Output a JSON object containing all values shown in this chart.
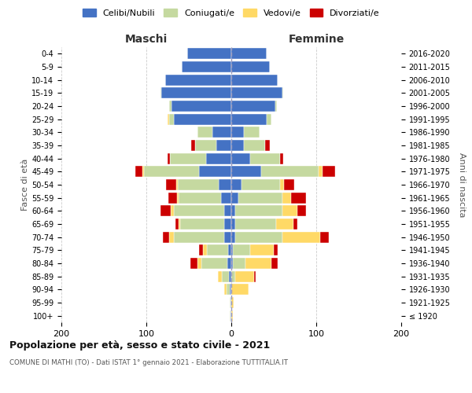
{
  "age_groups": [
    "100+",
    "95-99",
    "90-94",
    "85-89",
    "80-84",
    "75-79",
    "70-74",
    "65-69",
    "60-64",
    "55-59",
    "50-54",
    "45-49",
    "40-44",
    "35-39",
    "30-34",
    "25-29",
    "20-24",
    "15-19",
    "10-14",
    "5-9",
    "0-4"
  ],
  "birth_years": [
    "≤ 1920",
    "1921-1925",
    "1926-1930",
    "1931-1935",
    "1936-1940",
    "1941-1945",
    "1946-1950",
    "1951-1955",
    "1956-1960",
    "1961-1965",
    "1966-1970",
    "1971-1975",
    "1976-1980",
    "1981-1985",
    "1986-1990",
    "1991-1995",
    "1996-2000",
    "2001-2005",
    "2006-2010",
    "2011-2015",
    "2016-2020"
  ],
  "maschi": {
    "celibi": [
      1,
      1,
      2,
      3,
      5,
      4,
      8,
      8,
      8,
      12,
      15,
      38,
      30,
      18,
      22,
      68,
      70,
      82,
      78,
      58,
      52
    ],
    "coniugati": [
      1,
      1,
      4,
      8,
      30,
      25,
      60,
      52,
      60,
      50,
      48,
      65,
      42,
      25,
      18,
      5,
      3,
      1,
      0,
      0,
      0
    ],
    "vedovi": [
      0,
      0,
      2,
      5,
      5,
      4,
      5,
      2,
      3,
      2,
      2,
      2,
      0,
      0,
      0,
      2,
      0,
      0,
      0,
      0,
      0
    ],
    "divorziati": [
      0,
      0,
      0,
      0,
      8,
      5,
      8,
      4,
      12,
      10,
      12,
      8,
      3,
      4,
      0,
      0,
      0,
      0,
      0,
      0,
      0
    ]
  },
  "femmine": {
    "nubili": [
      0,
      0,
      0,
      0,
      2,
      2,
      5,
      5,
      5,
      8,
      12,
      35,
      22,
      15,
      15,
      42,
      52,
      60,
      55,
      45,
      42
    ],
    "coniugate": [
      0,
      0,
      0,
      5,
      15,
      20,
      55,
      48,
      55,
      52,
      45,
      68,
      35,
      25,
      18,
      5,
      2,
      1,
      0,
      0,
      0
    ],
    "vedove": [
      2,
      3,
      20,
      22,
      30,
      28,
      45,
      20,
      18,
      10,
      5,
      4,
      0,
      0,
      0,
      0,
      0,
      0,
      0,
      0,
      0
    ],
    "divorziate": [
      0,
      0,
      0,
      2,
      8,
      5,
      10,
      5,
      10,
      18,
      12,
      15,
      4,
      5,
      0,
      0,
      0,
      0,
      0,
      0,
      0
    ]
  },
  "colors": {
    "celibi": "#4472c4",
    "coniugati": "#c5d9a0",
    "vedovi": "#ffd966",
    "divorziati": "#cc0000"
  },
  "title": "Popolazione per età, sesso e stato civile - 2021",
  "subtitle": "COMUNE DI MATHI (TO) - Dati ISTAT 1° gennaio 2021 - Elaborazione TUTTITALIA.IT",
  "xlabel_left": "Maschi",
  "xlabel_right": "Femmine",
  "ylabel_left": "Fasce di età",
  "ylabel_right": "Anni di nascita",
  "xlim": 200,
  "background_color": "#ffffff",
  "grid_color": "#cccccc"
}
